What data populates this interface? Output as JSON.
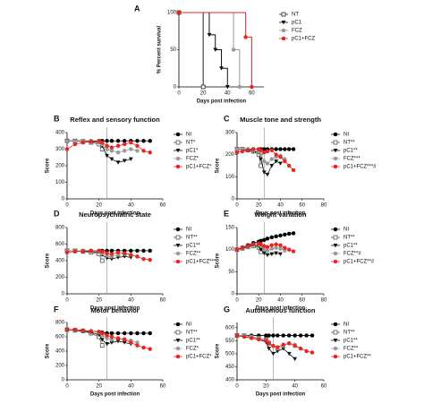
{
  "chart_data": [
    {
      "type": "step",
      "label": "A",
      "xlabel": "Days post infection",
      "ylabel": "% Percent survival",
      "xlim": [
        0,
        70
      ],
      "xticks": [
        0,
        20,
        40,
        60
      ],
      "ylim": [
        0,
        100
      ],
      "yticks": [
        0,
        50,
        100
      ],
      "series": [
        {
          "name": "NT",
          "color": "#222222",
          "marker": "square",
          "x": [
            0,
            20
          ],
          "values": [
            100,
            0
          ]
        },
        {
          "name": "pC1",
          "color": "#111111",
          "marker": "tri",
          "x": [
            0,
            25,
            30,
            35,
            40
          ],
          "values": [
            100,
            70,
            50,
            25,
            0
          ]
        },
        {
          "name": "FCZ",
          "color": "#9a9a9a",
          "marker": "circle",
          "x": [
            0,
            45,
            50
          ],
          "values": [
            100,
            50,
            0
          ]
        },
        {
          "name": "pC1+FCZ",
          "color": "#e8251f",
          "marker": "circle",
          "x": [
            0,
            55,
            60
          ],
          "values": [
            100,
            67,
            0
          ]
        }
      ]
    },
    {
      "type": "line",
      "label": "B",
      "title": "Reflex and sensory function",
      "xlabel": "Days post infection",
      "ylabel": "Score",
      "xlim": [
        0,
        60
      ],
      "xticks": [
        0,
        20,
        40,
        60
      ],
      "ylim": [
        0,
        400
      ],
      "yticks": [
        0,
        100,
        200,
        300,
        400
      ],
      "vline": 25,
      "x": [
        0,
        5,
        10,
        15,
        20,
        22,
        25,
        28,
        32,
        36,
        40,
        44,
        48,
        52
      ],
      "series": [
        {
          "name": "NI",
          "color": "#000000",
          "marker": "dot",
          "values": [
            350,
            350,
            350,
            350,
            350,
            350,
            350,
            350,
            350,
            350,
            350,
            350,
            350,
            350
          ]
        },
        {
          "name": "NT*",
          "color": "#555555",
          "marker": "square",
          "values": [
            350,
            350,
            345,
            340,
            330,
            300,
            null,
            null,
            null,
            null,
            null,
            null,
            null,
            null
          ]
        },
        {
          "name": "pC1*",
          "color": "#111111",
          "marker": "tri",
          "values": [
            350,
            350,
            350,
            345,
            340,
            320,
            260,
            240,
            220,
            230,
            240,
            null,
            null,
            null
          ]
        },
        {
          "name": "FCZ*",
          "color": "#9a9a9a",
          "marker": "circle",
          "values": [
            350,
            350,
            350,
            350,
            345,
            330,
            300,
            290,
            280,
            290,
            300,
            290,
            null,
            null
          ]
        },
        {
          "name": "pC1+FCZ*",
          "color": "#e8251f",
          "marker": "circle",
          "values": [
            300,
            330,
            340,
            345,
            350,
            340,
            320,
            310,
            320,
            330,
            340,
            320,
            290,
            280
          ]
        }
      ]
    },
    {
      "type": "line",
      "label": "C",
      "title": "Muscle tone and strength",
      "xlabel": "Days post infection",
      "ylabel": "Score",
      "xlim": [
        0,
        80
      ],
      "xticks": [
        0,
        20,
        40,
        60,
        80
      ],
      "ylim": [
        0,
        300
      ],
      "yticks": [
        0,
        100,
        200,
        300
      ],
      "vline": 25,
      "x": [
        0,
        5,
        10,
        15,
        20,
        22,
        25,
        28,
        32,
        36,
        40,
        44,
        48,
        52
      ],
      "series": [
        {
          "name": "NI",
          "color": "#000000",
          "marker": "dot",
          "values": [
            225,
            225,
            225,
            225,
            225,
            225,
            225,
            225,
            225,
            225,
            225,
            225,
            225,
            225
          ]
        },
        {
          "name": "NT**",
          "color": "#555555",
          "marker": "square",
          "values": [
            225,
            225,
            220,
            215,
            200,
            150,
            null,
            null,
            null,
            null,
            null,
            null,
            null,
            null
          ]
        },
        {
          "name": "pC1**",
          "color": "#111111",
          "marker": "tri",
          "values": [
            225,
            225,
            220,
            215,
            210,
            180,
            120,
            110,
            150,
            170,
            160,
            null,
            null,
            null
          ]
        },
        {
          "name": "FCZ***",
          "color": "#9a9a9a",
          "marker": "circle",
          "values": [
            225,
            225,
            225,
            220,
            215,
            200,
            170,
            160,
            180,
            190,
            195,
            180,
            null,
            null
          ]
        },
        {
          "name": "pC1+FCZ***#",
          "color": "#e8251f",
          "marker": "circle",
          "values": [
            210,
            215,
            220,
            225,
            225,
            220,
            210,
            215,
            220,
            200,
            190,
            170,
            150,
            130
          ]
        }
      ]
    },
    {
      "type": "line",
      "label": "D",
      "title": "Neuropsychiatric state",
      "xlabel": "Days post infection",
      "ylabel": "Score",
      "xlim": [
        0,
        60
      ],
      "xticks": [
        0,
        20,
        40,
        60
      ],
      "ylim": [
        0,
        800
      ],
      "yticks": [
        0,
        200,
        400,
        600,
        800
      ],
      "vline": 25,
      "x": [
        0,
        5,
        10,
        15,
        20,
        22,
        25,
        28,
        32,
        36,
        40,
        44,
        48,
        52
      ],
      "series": [
        {
          "name": "NI",
          "color": "#000000",
          "marker": "dot",
          "values": [
            520,
            520,
            520,
            520,
            520,
            520,
            520,
            520,
            520,
            520,
            520,
            520,
            520,
            520
          ]
        },
        {
          "name": "NT**",
          "color": "#555555",
          "marker": "square",
          "values": [
            520,
            520,
            510,
            500,
            480,
            400,
            null,
            null,
            null,
            null,
            null,
            null,
            null,
            null
          ]
        },
        {
          "name": "pC1**",
          "color": "#111111",
          "marker": "tri",
          "values": [
            520,
            520,
            515,
            510,
            500,
            470,
            430,
            420,
            440,
            450,
            440,
            null,
            null,
            null
          ]
        },
        {
          "name": "FCZ**",
          "color": "#9a9a9a",
          "marker": "circle",
          "values": [
            520,
            520,
            520,
            515,
            510,
            490,
            460,
            450,
            470,
            480,
            470,
            450,
            null,
            null
          ]
        },
        {
          "name": "pC1+FCZ***",
          "color": "#e8251f",
          "marker": "circle",
          "values": [
            500,
            510,
            515,
            520,
            520,
            510,
            490,
            480,
            500,
            490,
            470,
            450,
            420,
            410
          ]
        }
      ]
    },
    {
      "type": "line",
      "label": "E",
      "title": "Weight variation",
      "xlabel": "Days post infection",
      "ylabel": "Score",
      "xlim": [
        0,
        80
      ],
      "xticks": [
        0,
        20,
        40,
        60,
        80
      ],
      "ylim": [
        0,
        150
      ],
      "yticks": [
        0,
        50,
        100,
        150
      ],
      "vline": 25,
      "x": [
        0,
        5,
        10,
        15,
        20,
        22,
        25,
        28,
        32,
        36,
        40,
        44,
        48,
        52
      ],
      "series": [
        {
          "name": "NI",
          "color": "#000000",
          "marker": "dot",
          "values": [
            100,
            105,
            110,
            115,
            118,
            120,
            122,
            125,
            128,
            130,
            132,
            134,
            136,
            137
          ]
        },
        {
          "name": "NT**",
          "color": "#555555",
          "marker": "square",
          "values": [
            100,
            103,
            106,
            108,
            105,
            95,
            null,
            null,
            null,
            null,
            null,
            null,
            null,
            null
          ]
        },
        {
          "name": "pC1**",
          "color": "#111111",
          "marker": "tri",
          "values": [
            100,
            103,
            107,
            110,
            108,
            100,
            92,
            88,
            90,
            92,
            90,
            null,
            null,
            null
          ]
        },
        {
          "name": "FCZ**#",
          "color": "#9a9a9a",
          "marker": "circle",
          "values": [
            100,
            104,
            108,
            112,
            112,
            108,
            100,
            98,
            102,
            104,
            102,
            98,
            null,
            null
          ]
        },
        {
          "name": "pC1+FCZ**#",
          "color": "#e8251f",
          "marker": "circle",
          "values": [
            100,
            104,
            108,
            112,
            114,
            112,
            108,
            106,
            110,
            112,
            110,
            104,
            100,
            96
          ]
        }
      ]
    },
    {
      "type": "line",
      "label": "F",
      "title": "Motor behavior",
      "xlabel": "Days post infection",
      "ylabel": "Score",
      "xlim": [
        0,
        60
      ],
      "xticks": [
        0,
        20,
        40,
        60
      ],
      "ylim": [
        0,
        800
      ],
      "yticks": [
        0,
        200,
        400,
        600,
        800
      ],
      "vline": 25,
      "x": [
        0,
        5,
        10,
        15,
        20,
        22,
        25,
        28,
        32,
        36,
        40,
        44,
        48,
        52
      ],
      "series": [
        {
          "name": "NI",
          "color": "#000000",
          "marker": "dot",
          "values": [
            700,
            700,
            690,
            680,
            670,
            660,
            650,
            650,
            650,
            650,
            650,
            650,
            650,
            650
          ]
        },
        {
          "name": "NT**",
          "color": "#555555",
          "marker": "square",
          "values": [
            700,
            690,
            680,
            650,
            600,
            480,
            null,
            null,
            null,
            null,
            null,
            null,
            null,
            null
          ]
        },
        {
          "name": "pC1**",
          "color": "#111111",
          "marker": "tri",
          "values": [
            700,
            690,
            680,
            660,
            630,
            560,
            500,
            520,
            540,
            520,
            500,
            null,
            null,
            null
          ]
        },
        {
          "name": "FCZ*",
          "color": "#9a9a9a",
          "marker": "circle",
          "values": [
            700,
            695,
            690,
            680,
            660,
            620,
            580,
            560,
            580,
            570,
            550,
            520,
            null,
            null
          ]
        },
        {
          "name": "pC1+FCZ*",
          "color": "#e8251f",
          "marker": "circle",
          "values": [
            700,
            700,
            690,
            680,
            670,
            650,
            620,
            600,
            580,
            560,
            520,
            480,
            450,
            430
          ]
        }
      ]
    },
    {
      "type": "line",
      "label": "G",
      "title": "Autonomous function",
      "xlabel": "Days post infection",
      "ylabel": "Score",
      "xlim": [
        0,
        60
      ],
      "xticks": [
        0,
        20,
        40,
        60
      ],
      "ylim": [
        400,
        620
      ],
      "yticks": [
        400,
        450,
        500,
        550,
        600
      ],
      "vline": 25,
      "x": [
        0,
        5,
        10,
        15,
        20,
        22,
        25,
        28,
        32,
        36,
        40,
        44,
        48,
        52
      ],
      "series": [
        {
          "name": "NI",
          "color": "#000000",
          "marker": "dot",
          "values": [
            570,
            570,
            570,
            570,
            570,
            570,
            570,
            570,
            570,
            570,
            570,
            570,
            570,
            570
          ]
        },
        {
          "name": "NT**",
          "color": "#555555",
          "marker": "square",
          "values": [
            570,
            570,
            565,
            560,
            555,
            540,
            null,
            null,
            null,
            null,
            null,
            null,
            null,
            null
          ]
        },
        {
          "name": "pC1**",
          "color": "#111111",
          "marker": "tri",
          "values": [
            570,
            565,
            560,
            555,
            545,
            520,
            500,
            510,
            520,
            500,
            480,
            null,
            null,
            null
          ]
        },
        {
          "name": "FCZ**",
          "color": "#9a9a9a",
          "marker": "circle",
          "values": [
            570,
            570,
            565,
            560,
            555,
            545,
            530,
            520,
            530,
            540,
            535,
            520,
            null,
            null
          ]
        },
        {
          "name": "pC1+FCZ**",
          "color": "#e8251f",
          "marker": "circle",
          "values": [
            570,
            565,
            560,
            555,
            550,
            540,
            530,
            525,
            535,
            540,
            530,
            520,
            510,
            505
          ]
        }
      ]
    }
  ]
}
